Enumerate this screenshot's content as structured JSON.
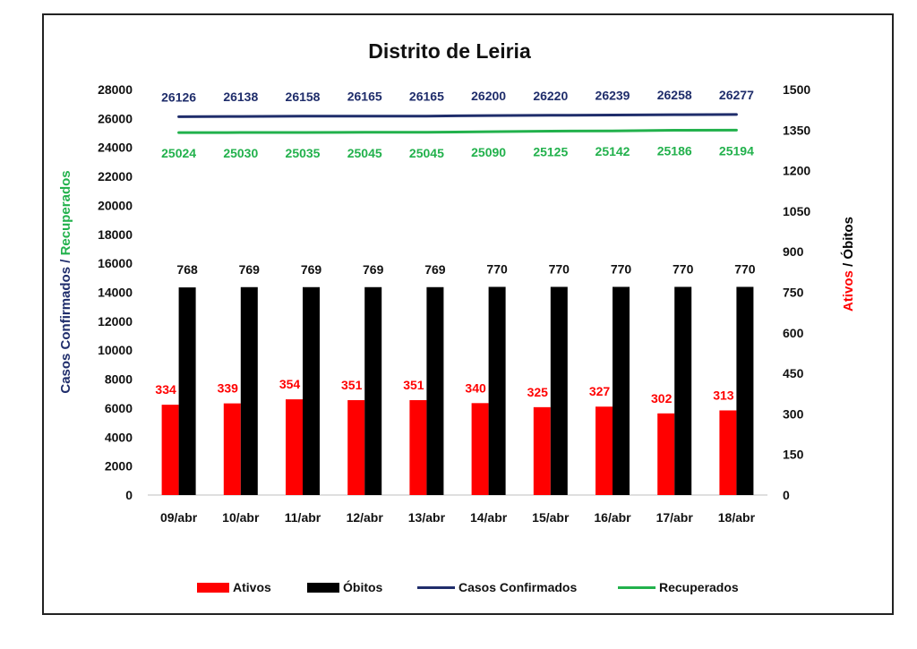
{
  "chart_data": {
    "type": "bar",
    "title": "Distrito de Leiria",
    "categories": [
      "09/abr",
      "10/abr",
      "11/abr",
      "12/abr",
      "13/abr",
      "14/abr",
      "15/abr",
      "16/abr",
      "17/abr",
      "18/abr"
    ],
    "left_axis": {
      "label_part1": "Casos Confirmados",
      "label_sep": " / ",
      "label_part2": "Recuperados",
      "ylim": [
        0,
        28000
      ],
      "ticks": [
        "0",
        "2000",
        "4000",
        "6000",
        "8000",
        "10000",
        "12000",
        "14000",
        "16000",
        "18000",
        "20000",
        "22000",
        "24000",
        "26000",
        "28000"
      ]
    },
    "right_axis": {
      "label_part1": "Ativos",
      "label_sep": " / ",
      "label_part2": "Óbitos",
      "ylim": [
        0,
        1500
      ],
      "ticks": [
        "0",
        "150",
        "300",
        "450",
        "600",
        "750",
        "900",
        "1050",
        "1200",
        "1350",
        "1500"
      ]
    },
    "series": [
      {
        "name": "Ativos",
        "kind": "bar",
        "axis": "right",
        "color": "#ff0000",
        "values": [
          334,
          339,
          354,
          351,
          351,
          340,
          325,
          327,
          302,
          313
        ]
      },
      {
        "name": "Óbitos",
        "kind": "bar",
        "axis": "right",
        "color": "#000000",
        "values": [
          768,
          769,
          769,
          769,
          769,
          770,
          770,
          770,
          770,
          770
        ]
      },
      {
        "name": "Casos Confirmados",
        "kind": "line",
        "axis": "left",
        "color": "#1f2d6b",
        "values": [
          26126,
          26138,
          26158,
          26165,
          26165,
          26200,
          26220,
          26239,
          26258,
          26277
        ]
      },
      {
        "name": "Recuperados",
        "kind": "line",
        "axis": "left",
        "color": "#22b14c",
        "values": [
          25024,
          25030,
          25035,
          25045,
          25045,
          25090,
          25125,
          25142,
          25186,
          25194
        ]
      }
    ],
    "grid": false,
    "legend_position": "bottom"
  }
}
